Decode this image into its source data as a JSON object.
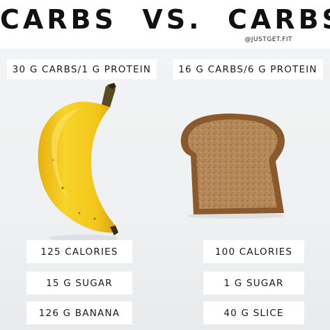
{
  "header": {
    "title": "CARBS  VS.  CARBS",
    "handle": "@JUSTGET.FIT"
  },
  "left": {
    "food_icon": "banana",
    "macros": "30 G CARBS/1 G PROTEIN",
    "calories": "125 CALORIES",
    "sugar": "15 G SUGAR",
    "portion": "126 G BANANA"
  },
  "right": {
    "food_icon": "bread-slice",
    "macros": "16 G CARBS/6 G PROTEIN",
    "calories": "100 CALORIES",
    "sugar": "1 G SUGAR",
    "portion": "40 G SLICE"
  },
  "colors": {
    "background": "#eef0f1",
    "label_bg": "#ffffff",
    "text": "#111111",
    "banana": "#f2c81c",
    "bread_crust": "#8a5a2e",
    "bread_crumb": "#b48552"
  }
}
